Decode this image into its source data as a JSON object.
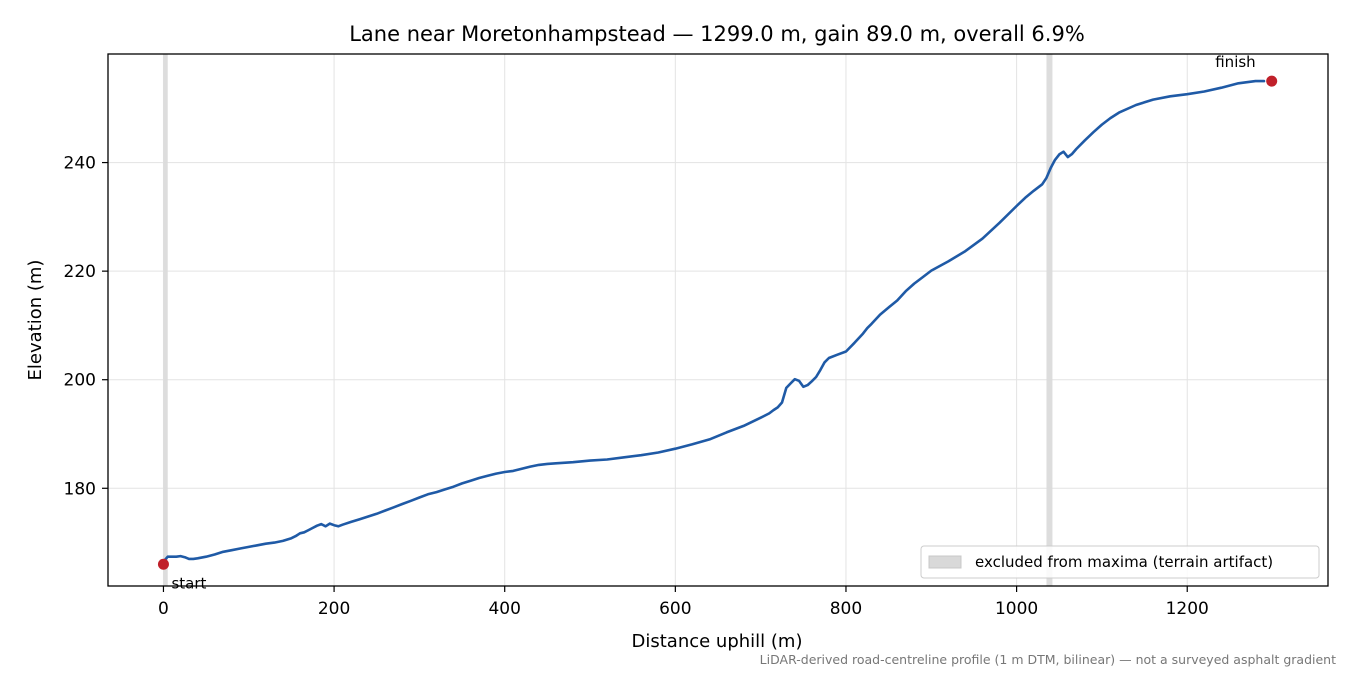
{
  "chart_data": {
    "type": "line",
    "title": "Lane near Moretonhampstead — 1299.0 m, gain 89.0 m, overall 6.9%",
    "xlabel": "Distance uphill (m)",
    "ylabel": "Elevation (m)",
    "xlim": [
      -65,
      1365
    ],
    "ylim": [
      162,
      260
    ],
    "xticks": [
      0,
      200,
      400,
      600,
      800,
      1000,
      1200
    ],
    "yticks": [
      180,
      200,
      220,
      240
    ],
    "grid": true,
    "legend_position": "lower-right",
    "line_color": "#1f5aa6",
    "marker_color": "#c0202a",
    "band_color": "#d9d9d9",
    "series": [
      {
        "x": [
          0,
          5,
          10,
          15,
          20,
          25,
          30,
          35,
          40,
          50,
          60,
          70,
          80,
          90,
          100,
          110,
          120,
          130,
          140,
          150,
          155,
          160,
          165,
          170,
          175,
          180,
          185,
          190,
          195,
          200,
          205,
          210,
          220,
          230,
          240,
          250,
          260,
          270,
          280,
          290,
          300,
          310,
          320,
          330,
          340,
          350,
          360,
          370,
          380,
          390,
          400,
          410,
          420,
          430,
          440,
          450,
          460,
          480,
          500,
          520,
          540,
          560,
          580,
          600,
          620,
          640,
          660,
          680,
          700,
          710,
          715,
          720,
          725,
          730,
          735,
          740,
          745,
          750,
          755,
          760,
          765,
          770,
          775,
          780,
          790,
          800,
          810,
          820,
          825,
          830,
          840,
          850,
          860,
          870,
          880,
          890,
          900,
          920,
          940,
          960,
          980,
          1000,
          1010,
          1020,
          1030,
          1035,
          1040,
          1045,
          1050,
          1055,
          1060,
          1065,
          1070,
          1080,
          1090,
          1100,
          1110,
          1120,
          1140,
          1160,
          1180,
          1200,
          1220,
          1240,
          1260,
          1280,
          1290
        ],
        "y": [
          166.5,
          167.4,
          167.4,
          167.4,
          167.5,
          167.3,
          167.0,
          167.0,
          167.1,
          167.4,
          167.8,
          168.3,
          168.6,
          168.9,
          169.2,
          169.5,
          169.8,
          170.0,
          170.3,
          170.8,
          171.2,
          171.7,
          171.9,
          172.3,
          172.7,
          173.1,
          173.4,
          173.0,
          173.5,
          173.2,
          173.0,
          173.3,
          173.8,
          174.3,
          174.8,
          175.3,
          175.9,
          176.5,
          177.1,
          177.7,
          178.3,
          178.9,
          179.3,
          179.8,
          180.3,
          180.9,
          181.4,
          181.9,
          182.3,
          182.7,
          183.0,
          183.2,
          183.6,
          184.0,
          184.3,
          184.5,
          184.6,
          184.8,
          185.1,
          185.3,
          185.7,
          186.1,
          186.6,
          187.3,
          188.1,
          189.0,
          190.3,
          191.5,
          193.0,
          193.8,
          194.4,
          194.9,
          195.8,
          198.5,
          199.3,
          200.1,
          199.8,
          198.7,
          199.0,
          199.7,
          200.5,
          201.8,
          203.2,
          204.0,
          204.6,
          205.2,
          206.8,
          208.5,
          209.5,
          210.3,
          212.0,
          213.3,
          214.6,
          216.3,
          217.7,
          218.9,
          220.1,
          221.8,
          223.7,
          226.0,
          228.9,
          232.0,
          233.5,
          234.8,
          236.0,
          237.2,
          239.0,
          240.5,
          241.5,
          242.0,
          241.0,
          241.6,
          242.5,
          244.1,
          245.6,
          247.0,
          248.2,
          249.2,
          250.6,
          251.6,
          252.2,
          252.6,
          253.1,
          253.8,
          254.6,
          255.0,
          255.0
        ]
      }
    ],
    "excluded_bands": [
      [
        0,
        5
      ],
      [
        1035,
        1042
      ]
    ],
    "points": [
      {
        "x": 0,
        "y": 166.0,
        "label": "start",
        "label_pos": "below-right"
      },
      {
        "x": 1299,
        "y": 255.0,
        "label": "finish",
        "label_pos": "above-left"
      }
    ],
    "legend": [
      "excluded from maxima (terrain artifact)"
    ],
    "footnote": "LiDAR-derived road-centreline profile (1 m DTM, bilinear) — not a surveyed asphalt gradient"
  }
}
